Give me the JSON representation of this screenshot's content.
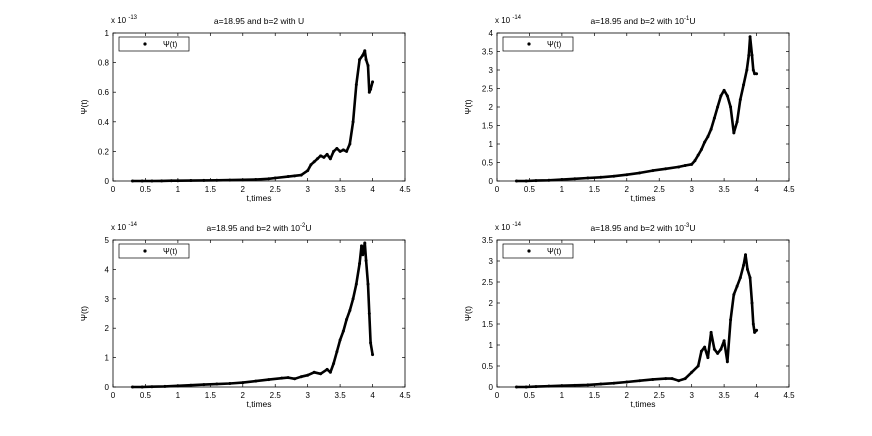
{
  "chart_data": [
    {
      "type": "scatter",
      "title": "a=18.95 and b=2 with U",
      "title_html": [
        "a=18.95 and b=2 with U"
      ],
      "xlabel": "t,times",
      "ylabel": "Ψ(t)",
      "scale_label": "x 10",
      "scale_exp": "-13",
      "xlim": [
        0,
        4.5
      ],
      "ylim": [
        0,
        1
      ],
      "xticks": [
        "0",
        "0.5",
        "1",
        "1.5",
        "2",
        "2.5",
        "3",
        "3.5",
        "4",
        "4.5"
      ],
      "yticks": [
        "0",
        "0.2",
        "0.4",
        "0.6",
        "0.8",
        "1"
      ],
      "legend": {
        "label": "Ψ(t)",
        "placement": "top-left"
      },
      "series": [
        {
          "name": "Ψ(t)",
          "x": [
            0.3,
            0.45,
            0.6,
            0.75,
            0.9,
            1.0,
            1.2,
            1.4,
            1.6,
            1.8,
            2.0,
            2.2,
            2.4,
            2.5,
            2.7,
            2.8,
            2.9,
            3.0,
            3.05,
            3.1,
            3.15,
            3.2,
            3.25,
            3.3,
            3.35,
            3.4,
            3.45,
            3.5,
            3.55,
            3.6,
            3.65,
            3.7,
            3.75,
            3.8,
            3.85,
            3.88,
            3.9,
            3.93,
            3.95,
            3.97,
            4.0
          ],
          "y": [
            0,
            0,
            0,
            0.001,
            0.002,
            0.002,
            0.003,
            0.004,
            0.005,
            0.006,
            0.008,
            0.01,
            0.015,
            0.02,
            0.03,
            0.035,
            0.04,
            0.07,
            0.11,
            0.13,
            0.15,
            0.17,
            0.16,
            0.18,
            0.15,
            0.2,
            0.22,
            0.2,
            0.21,
            0.2,
            0.25,
            0.4,
            0.65,
            0.82,
            0.85,
            0.88,
            0.82,
            0.78,
            0.6,
            0.62,
            0.67
          ]
        }
      ]
    },
    {
      "type": "scatter",
      "title": "a=18.95 and b=2 with 10^-1 U",
      "title_html": [
        "a=18.95 and b=2 with 10",
        "-1",
        "U"
      ],
      "xlabel": "t,times",
      "ylabel": "Ψ(t)",
      "scale_label": "x 10",
      "scale_exp": "-14",
      "xlim": [
        0,
        4.5
      ],
      "ylim": [
        0,
        4
      ],
      "xticks": [
        "0",
        "0.5",
        "1",
        "1.5",
        "2",
        "2.5",
        "3",
        "3.5",
        "4",
        "4.5"
      ],
      "yticks": [
        "0",
        "0.5",
        "1",
        "1.5",
        "2",
        "2.5",
        "3",
        "3.5",
        "4"
      ],
      "legend": {
        "label": "Ψ(t)",
        "placement": "top-left"
      },
      "series": [
        {
          "name": "Ψ(t)",
          "x": [
            0.3,
            0.45,
            0.6,
            0.8,
            1.0,
            1.2,
            1.4,
            1.6,
            1.8,
            2.0,
            2.2,
            2.4,
            2.6,
            2.8,
            2.9,
            3.0,
            3.05,
            3.1,
            3.15,
            3.2,
            3.25,
            3.3,
            3.35,
            3.4,
            3.45,
            3.5,
            3.55,
            3.6,
            3.65,
            3.7,
            3.75,
            3.8,
            3.85,
            3.88,
            3.9,
            3.93,
            3.95,
            3.97,
            4.0
          ],
          "y": [
            0,
            0,
            0.01,
            0.02,
            0.04,
            0.06,
            0.08,
            0.1,
            0.13,
            0.17,
            0.22,
            0.28,
            0.33,
            0.38,
            0.42,
            0.45,
            0.55,
            0.7,
            0.85,
            1.05,
            1.2,
            1.4,
            1.7,
            2.0,
            2.3,
            2.45,
            2.3,
            2.0,
            1.3,
            1.6,
            2.2,
            2.6,
            3.0,
            3.4,
            3.9,
            3.4,
            3.0,
            2.9,
            2.9
          ]
        }
      ]
    },
    {
      "type": "scatter",
      "title": "a=18.95 and b=2 with 10^-2 U",
      "title_html": [
        "a=18.95  and b=2 with 10",
        "-2",
        "U"
      ],
      "xlabel": "t,times",
      "ylabel": "Ψ(t)",
      "scale_label": "x 10",
      "scale_exp": "-14",
      "xlim": [
        0,
        4.5
      ],
      "ylim": [
        0,
        5
      ],
      "xticks": [
        "0",
        "0.5",
        "1",
        "1.5",
        "2",
        "2.5",
        "3",
        "3.5",
        "4",
        "4.5"
      ],
      "yticks": [
        "0",
        "1",
        "2",
        "3",
        "4",
        "5"
      ],
      "legend": {
        "label": "Ψ(t)",
        "placement": "top-left"
      },
      "series": [
        {
          "name": "Ψ(t)",
          "x": [
            0.3,
            0.45,
            0.6,
            0.8,
            1.0,
            1.2,
            1.4,
            1.6,
            1.8,
            2.0,
            2.2,
            2.4,
            2.6,
            2.7,
            2.8,
            2.9,
            3.0,
            3.1,
            3.2,
            3.3,
            3.35,
            3.4,
            3.45,
            3.5,
            3.55,
            3.6,
            3.65,
            3.7,
            3.75,
            3.8,
            3.83,
            3.85,
            3.88,
            3.9,
            3.93,
            3.95,
            3.97,
            4.0
          ],
          "y": [
            0,
            0,
            0.01,
            0.02,
            0.04,
            0.06,
            0.08,
            0.1,
            0.12,
            0.15,
            0.2,
            0.25,
            0.3,
            0.32,
            0.28,
            0.35,
            0.4,
            0.5,
            0.45,
            0.6,
            0.5,
            0.8,
            1.2,
            1.6,
            1.9,
            2.3,
            2.6,
            3.0,
            3.5,
            4.2,
            4.8,
            4.5,
            4.9,
            4.3,
            3.5,
            2.5,
            1.5,
            1.1
          ]
        }
      ]
    },
    {
      "type": "scatter",
      "title": "a=18.95 and b=2 with 10^-3 U",
      "title_html": [
        "a=18.95  and b=2 with 10",
        "-3",
        "U"
      ],
      "xlabel": "t,times",
      "ylabel": "Ψ(t)",
      "scale_label": "x 10",
      "scale_exp": "-14",
      "xlim": [
        0,
        4.5
      ],
      "ylim": [
        0,
        3.5
      ],
      "xticks": [
        "0",
        "0.5",
        "1",
        "1.5",
        "2",
        "2.5",
        "3",
        "3.5",
        "4",
        "4.5"
      ],
      "yticks": [
        "0",
        "0.5",
        "1",
        "1.5",
        "2",
        "2.5",
        "3",
        "3.5"
      ],
      "legend": {
        "label": "Ψ(t)",
        "placement": "top-left"
      },
      "series": [
        {
          "name": "Ψ(t)",
          "x": [
            0.3,
            0.45,
            0.6,
            0.8,
            1.0,
            1.2,
            1.4,
            1.6,
            1.8,
            2.0,
            2.2,
            2.4,
            2.6,
            2.7,
            2.8,
            2.9,
            3.0,
            3.1,
            3.15,
            3.2,
            3.25,
            3.3,
            3.35,
            3.4,
            3.45,
            3.5,
            3.55,
            3.6,
            3.65,
            3.7,
            3.75,
            3.8,
            3.83,
            3.86,
            3.9,
            3.93,
            3.95,
            3.97,
            4.0
          ],
          "y": [
            0,
            0,
            0.01,
            0.02,
            0.03,
            0.04,
            0.05,
            0.07,
            0.09,
            0.12,
            0.15,
            0.18,
            0.2,
            0.2,
            0.15,
            0.2,
            0.35,
            0.5,
            0.85,
            0.95,
            0.7,
            1.3,
            0.9,
            0.8,
            0.9,
            1.1,
            0.6,
            1.6,
            2.2,
            2.4,
            2.6,
            2.9,
            3.15,
            2.8,
            2.6,
            2.0,
            1.5,
            1.3,
            1.35
          ]
        }
      ]
    }
  ]
}
